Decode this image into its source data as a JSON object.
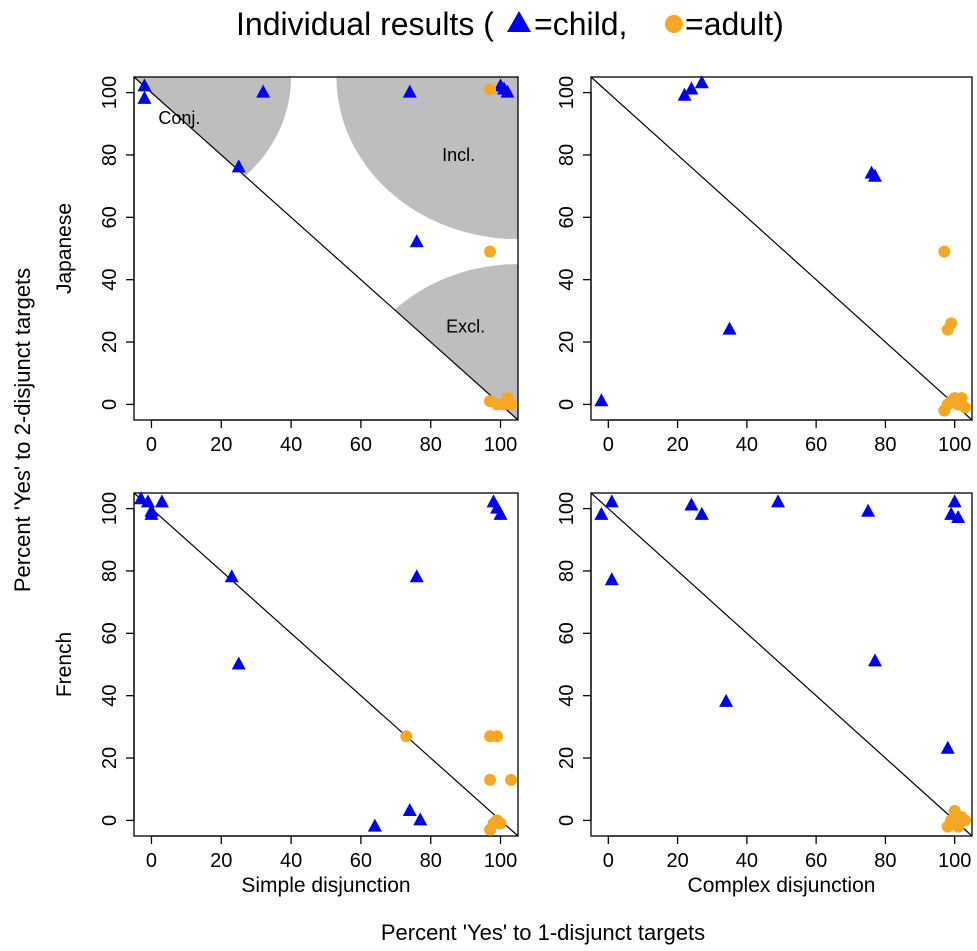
{
  "figure": {
    "title_main": "Individual results (",
    "title_child": "=child,",
    "title_adult": "=adult)",
    "ylabel": "Percent 'Yes' to 2-disjunct targets",
    "xlabel": "Percent 'Yes' to 1-disjunct targets",
    "colors": {
      "child": "#0000ee",
      "adult": "#f5a623",
      "region": "#bebebe"
    }
  },
  "chart_data": [
    {
      "type": "scatter",
      "row_label": "Japanese",
      "col_label": "",
      "xlim": [
        -5,
        105
      ],
      "ylim": [
        -5,
        105
      ],
      "x_ticks": [
        0,
        20,
        40,
        60,
        80,
        100
      ],
      "y_ticks": [
        0,
        20,
        40,
        60,
        80,
        100
      ],
      "regions": [
        {
          "label": "Conj.",
          "kind": "conj"
        },
        {
          "label": "Incl.",
          "kind": "incl"
        },
        {
          "label": "Excl.",
          "kind": "excl"
        }
      ],
      "series": [
        {
          "name": "child",
          "marker": "triangle",
          "points": [
            [
              -2,
              102
            ],
            [
              -2,
              98
            ],
            [
              25,
              76
            ],
            [
              32,
              100
            ],
            [
              74,
              100
            ],
            [
              76,
              52
            ],
            [
              100,
              102
            ],
            [
              101,
              101
            ],
            [
              102,
              100
            ]
          ]
        },
        {
          "name": "adult",
          "marker": "circle",
          "points": [
            [
              97,
              101
            ],
            [
              97,
              49
            ],
            [
              97,
              1
            ],
            [
              99,
              0
            ],
            [
              101,
              0
            ],
            [
              102,
              2
            ],
            [
              103,
              0
            ]
          ]
        }
      ]
    },
    {
      "type": "scatter",
      "row_label": "",
      "col_label": "",
      "xlim": [
        -5,
        105
      ],
      "ylim": [
        -5,
        105
      ],
      "x_ticks": [
        0,
        20,
        40,
        60,
        80,
        100
      ],
      "y_ticks": [
        0,
        20,
        40,
        60,
        80,
        100
      ],
      "regions": [],
      "series": [
        {
          "name": "child",
          "marker": "triangle",
          "points": [
            [
              -2,
              1
            ],
            [
              22,
              99
            ],
            [
              24,
              101
            ],
            [
              27,
              103
            ],
            [
              35,
              24
            ],
            [
              76,
              74
            ],
            [
              77,
              73
            ]
          ]
        },
        {
          "name": "adult",
          "marker": "circle",
          "points": [
            [
              97,
              49
            ],
            [
              98,
              24
            ],
            [
              99,
              26
            ],
            [
              97,
              -2
            ],
            [
              98,
              0
            ],
            [
              99,
              1
            ],
            [
              100,
              2
            ],
            [
              101,
              0
            ],
            [
              102,
              2
            ],
            [
              103,
              -1
            ]
          ]
        }
      ]
    },
    {
      "type": "scatter",
      "row_label": "French",
      "col_label": "Simple disjunction",
      "xlim": [
        -5,
        105
      ],
      "ylim": [
        -5,
        105
      ],
      "x_ticks": [
        0,
        20,
        40,
        60,
        80,
        100
      ],
      "y_ticks": [
        0,
        20,
        40,
        60,
        80,
        100
      ],
      "regions": [],
      "series": [
        {
          "name": "child",
          "marker": "triangle",
          "points": [
            [
              -3,
              103
            ],
            [
              -1,
              102
            ],
            [
              0,
              99
            ],
            [
              0,
              98
            ],
            [
              3,
              102
            ],
            [
              23,
              78
            ],
            [
              25,
              50
            ],
            [
              64,
              -2
            ],
            [
              74,
              3
            ],
            [
              76,
              78
            ],
            [
              77,
              0
            ],
            [
              98,
              102
            ],
            [
              99,
              100
            ],
            [
              100,
              98
            ]
          ]
        },
        {
          "name": "adult",
          "marker": "circle",
          "points": [
            [
              73,
              27
            ],
            [
              97,
              27
            ],
            [
              99,
              27
            ],
            [
              97,
              13
            ],
            [
              103,
              13
            ],
            [
              97,
              -3
            ],
            [
              98,
              -1
            ],
            [
              99,
              0
            ],
            [
              100,
              -1
            ]
          ]
        }
      ]
    },
    {
      "type": "scatter",
      "row_label": "",
      "col_label": "Complex disjunction",
      "xlim": [
        -5,
        105
      ],
      "ylim": [
        -5,
        105
      ],
      "x_ticks": [
        0,
        20,
        40,
        60,
        80,
        100
      ],
      "y_ticks": [
        0,
        20,
        40,
        60,
        80,
        100
      ],
      "regions": [],
      "series": [
        {
          "name": "child",
          "marker": "triangle",
          "points": [
            [
              -2,
              98
            ],
            [
              1,
              102
            ],
            [
              1,
              77
            ],
            [
              24,
              101
            ],
            [
              27,
              98
            ],
            [
              34,
              38
            ],
            [
              49,
              102
            ],
            [
              75,
              99
            ],
            [
              77,
              51
            ],
            [
              98,
              23
            ],
            [
              99,
              98
            ],
            [
              100,
              102
            ],
            [
              101,
              97
            ]
          ]
        },
        {
          "name": "adult",
          "marker": "circle",
          "points": [
            [
              98,
              -2
            ],
            [
              99,
              0
            ],
            [
              100,
              1
            ],
            [
              100,
              3
            ],
            [
              101,
              -2
            ],
            [
              102,
              1
            ],
            [
              103,
              0
            ]
          ]
        }
      ]
    }
  ]
}
